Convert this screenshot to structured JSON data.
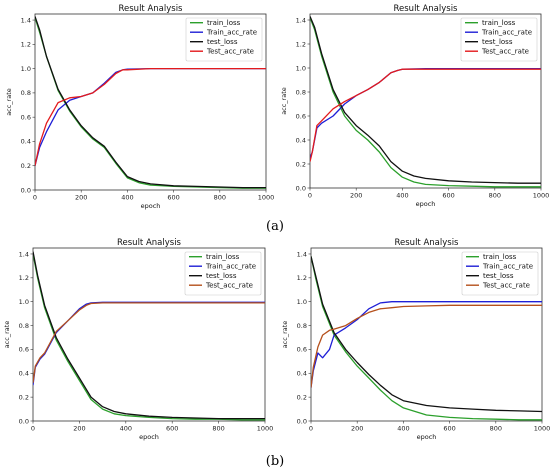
{
  "captions": [
    "(a)",
    "(b)"
  ],
  "chart_data": [
    {
      "type": "line",
      "title": "Result Analysis",
      "xlabel": "epoch",
      "ylabel": "acc_rate",
      "xlim": [
        0,
        1000
      ],
      "ylim": [
        0.0,
        1.45
      ],
      "xticks": [
        0,
        200,
        400,
        600,
        800,
        1000
      ],
      "yticks": [
        0.0,
        0.2,
        0.4,
        0.6,
        0.8,
        1.0,
        1.2,
        1.4
      ],
      "legend": "top-right",
      "series": [
        {
          "name": "train_loss",
          "color": "#2ca02c",
          "x": [
            0,
            20,
            50,
            100,
            150,
            200,
            250,
            300,
            350,
            400,
            450,
            500,
            600,
            700,
            800,
            900,
            1000
          ],
          "y": [
            1.42,
            1.3,
            1.1,
            0.82,
            0.65,
            0.52,
            0.42,
            0.35,
            0.22,
            0.1,
            0.06,
            0.04,
            0.03,
            0.025,
            0.02,
            0.015,
            0.015
          ]
        },
        {
          "name": "Train_acc_rate",
          "color": "#1f1fd6",
          "x": [
            0,
            20,
            50,
            100,
            150,
            200,
            250,
            300,
            350,
            380,
            400,
            500,
            600,
            700,
            800,
            900,
            1000
          ],
          "y": [
            0.2,
            0.35,
            0.48,
            0.66,
            0.74,
            0.77,
            0.8,
            0.88,
            0.97,
            0.99,
            0.995,
            1.0,
            1.0,
            1.0,
            1.0,
            1.0,
            1.0
          ]
        },
        {
          "name": "test_loss",
          "color": "#111111",
          "x": [
            0,
            20,
            50,
            100,
            150,
            200,
            250,
            300,
            350,
            400,
            450,
            500,
            600,
            700,
            800,
            900,
            1000
          ],
          "y": [
            1.43,
            1.32,
            1.1,
            0.83,
            0.66,
            0.53,
            0.43,
            0.36,
            0.23,
            0.11,
            0.07,
            0.05,
            0.035,
            0.03,
            0.025,
            0.02,
            0.02
          ]
        },
        {
          "name": "Test_acc_rate",
          "color": "#e31a1c",
          "x": [
            0,
            20,
            50,
            100,
            150,
            200,
            250,
            300,
            350,
            380,
            400,
            500,
            600,
            700,
            800,
            900,
            1000
          ],
          "y": [
            0.2,
            0.38,
            0.55,
            0.72,
            0.76,
            0.77,
            0.8,
            0.87,
            0.96,
            0.99,
            0.99,
            1.0,
            1.0,
            1.0,
            1.0,
            1.0,
            1.0
          ]
        }
      ]
    },
    {
      "type": "line",
      "title": "Result Analysis",
      "xlabel": "epoch",
      "ylabel": "acc_rate",
      "xlim": [
        0,
        1000
      ],
      "ylim": [
        0.0,
        1.45
      ],
      "xticks": [
        0,
        200,
        400,
        600,
        800,
        1000
      ],
      "yticks": [
        0.0,
        0.2,
        0.4,
        0.6,
        0.8,
        1.0,
        1.2,
        1.4
      ],
      "legend": "top-right",
      "series": [
        {
          "name": "train_loss",
          "color": "#2ca02c",
          "x": [
            0,
            20,
            50,
            100,
            150,
            200,
            250,
            300,
            350,
            400,
            450,
            500,
            600,
            700,
            800,
            900,
            1000
          ],
          "y": [
            1.42,
            1.32,
            1.1,
            0.8,
            0.6,
            0.48,
            0.4,
            0.3,
            0.17,
            0.09,
            0.05,
            0.03,
            0.02,
            0.015,
            0.01,
            0.01,
            0.01
          ]
        },
        {
          "name": "Train_acc_rate",
          "color": "#1f1fd6",
          "x": [
            0,
            10,
            30,
            50,
            100,
            150,
            200,
            250,
            300,
            350,
            380,
            400,
            500,
            600,
            700,
            800,
            900,
            1000
          ],
          "y": [
            0.25,
            0.3,
            0.5,
            0.54,
            0.6,
            0.7,
            0.77,
            0.82,
            0.88,
            0.96,
            0.98,
            0.99,
            0.995,
            0.995,
            0.995,
            0.995,
            0.995,
            0.995
          ]
        },
        {
          "name": "test_loss",
          "color": "#111111",
          "x": [
            0,
            20,
            50,
            100,
            150,
            200,
            250,
            300,
            350,
            400,
            450,
            500,
            600,
            700,
            800,
            900,
            1000
          ],
          "y": [
            1.43,
            1.34,
            1.12,
            0.82,
            0.63,
            0.52,
            0.44,
            0.35,
            0.22,
            0.14,
            0.1,
            0.08,
            0.06,
            0.05,
            0.045,
            0.04,
            0.04
          ]
        },
        {
          "name": "Test_acc_rate",
          "color": "#e31a1c",
          "x": [
            0,
            10,
            30,
            50,
            100,
            150,
            200,
            250,
            300,
            350,
            380,
            400,
            500,
            600,
            700,
            800,
            900,
            1000
          ],
          "y": [
            0.22,
            0.3,
            0.52,
            0.56,
            0.66,
            0.72,
            0.77,
            0.82,
            0.88,
            0.96,
            0.98,
            0.99,
            0.99,
            0.99,
            0.99,
            0.99,
            0.99,
            0.99
          ]
        }
      ]
    },
    {
      "type": "line",
      "title": "Result Analysis",
      "xlabel": "epoch",
      "ylabel": "acc_rate",
      "xlim": [
        0,
        1000
      ],
      "ylim": [
        0.0,
        1.45
      ],
      "xticks": [
        0,
        200,
        400,
        600,
        800,
        1000
      ],
      "yticks": [
        0.0,
        0.2,
        0.4,
        0.6,
        0.8,
        1.0,
        1.2,
        1.4
      ],
      "legend": "top-right",
      "series": [
        {
          "name": "train_loss",
          "color": "#2ca02c",
          "x": [
            0,
            20,
            50,
            100,
            150,
            200,
            250,
            300,
            350,
            400,
            500,
            600,
            700,
            800,
            900,
            1000
          ],
          "y": [
            1.4,
            1.2,
            0.95,
            0.68,
            0.5,
            0.34,
            0.18,
            0.1,
            0.06,
            0.045,
            0.03,
            0.02,
            0.015,
            0.015,
            0.01,
            0.01
          ]
        },
        {
          "name": "Train_acc_rate",
          "color": "#1f1fd6",
          "x": [
            0,
            10,
            30,
            50,
            100,
            150,
            200,
            230,
            250,
            300,
            400,
            500,
            600,
            700,
            800,
            900,
            1000
          ],
          "y": [
            0.3,
            0.45,
            0.52,
            0.56,
            0.74,
            0.84,
            0.94,
            0.98,
            0.99,
            0.995,
            0.995,
            0.995,
            0.995,
            0.995,
            0.995,
            0.995,
            0.995
          ]
        },
        {
          "name": "test_loss",
          "color": "#111111",
          "x": [
            0,
            20,
            50,
            100,
            150,
            200,
            250,
            300,
            350,
            400,
            500,
            600,
            700,
            800,
            900,
            1000
          ],
          "y": [
            1.42,
            1.22,
            0.97,
            0.7,
            0.52,
            0.36,
            0.2,
            0.12,
            0.08,
            0.06,
            0.04,
            0.03,
            0.025,
            0.02,
            0.02,
            0.02
          ]
        },
        {
          "name": "Test_acc_rate",
          "color": "#b5501c",
          "x": [
            0,
            10,
            30,
            50,
            100,
            150,
            200,
            230,
            250,
            300,
            400,
            500,
            600,
            700,
            800,
            900,
            1000
          ],
          "y": [
            0.32,
            0.46,
            0.53,
            0.57,
            0.75,
            0.84,
            0.93,
            0.97,
            0.985,
            0.99,
            0.99,
            0.99,
            0.99,
            0.99,
            0.99,
            0.99,
            0.99
          ]
        }
      ]
    },
    {
      "type": "line",
      "title": "Result Analysis",
      "xlabel": "epoch",
      "ylabel": "acc_rate",
      "xlim": [
        0,
        1000
      ],
      "ylim": [
        0.0,
        1.45
      ],
      "xticks": [
        0,
        200,
        400,
        600,
        800,
        1000
      ],
      "yticks": [
        0.0,
        0.2,
        0.4,
        0.6,
        0.8,
        1.0,
        1.2,
        1.4
      ],
      "legend": "top-right",
      "series": [
        {
          "name": "train_loss",
          "color": "#2ca02c",
          "x": [
            0,
            20,
            50,
            100,
            150,
            200,
            250,
            300,
            350,
            400,
            500,
            600,
            700,
            800,
            900,
            1000
          ],
          "y": [
            1.38,
            1.2,
            0.96,
            0.72,
            0.58,
            0.46,
            0.36,
            0.26,
            0.17,
            0.11,
            0.05,
            0.03,
            0.02,
            0.015,
            0.01,
            0.01
          ]
        },
        {
          "name": "Train_acc_rate",
          "color": "#1f1fd6",
          "x": [
            0,
            10,
            30,
            50,
            80,
            100,
            150,
            200,
            250,
            300,
            350,
            400,
            500,
            600,
            700,
            800,
            900,
            1000
          ],
          "y": [
            0.28,
            0.42,
            0.57,
            0.53,
            0.6,
            0.72,
            0.78,
            0.85,
            0.94,
            0.99,
            1.0,
            1.0,
            1.0,
            1.0,
            1.0,
            1.0,
            1.0,
            1.0
          ]
        },
        {
          "name": "test_loss",
          "color": "#111111",
          "x": [
            0,
            20,
            50,
            100,
            150,
            200,
            250,
            300,
            350,
            400,
            500,
            600,
            700,
            800,
            900,
            1000
          ],
          "y": [
            1.38,
            1.22,
            0.98,
            0.74,
            0.6,
            0.49,
            0.39,
            0.3,
            0.22,
            0.17,
            0.13,
            0.11,
            0.1,
            0.09,
            0.085,
            0.08
          ]
        },
        {
          "name": "Test_acc_rate",
          "color": "#b5501c",
          "x": [
            0,
            10,
            30,
            50,
            80,
            100,
            150,
            200,
            250,
            300,
            350,
            400,
            500,
            600,
            700,
            800,
            900,
            1000
          ],
          "y": [
            0.28,
            0.45,
            0.62,
            0.72,
            0.76,
            0.77,
            0.8,
            0.86,
            0.91,
            0.94,
            0.95,
            0.96,
            0.965,
            0.97,
            0.97,
            0.97,
            0.97,
            0.97
          ]
        }
      ]
    }
  ]
}
